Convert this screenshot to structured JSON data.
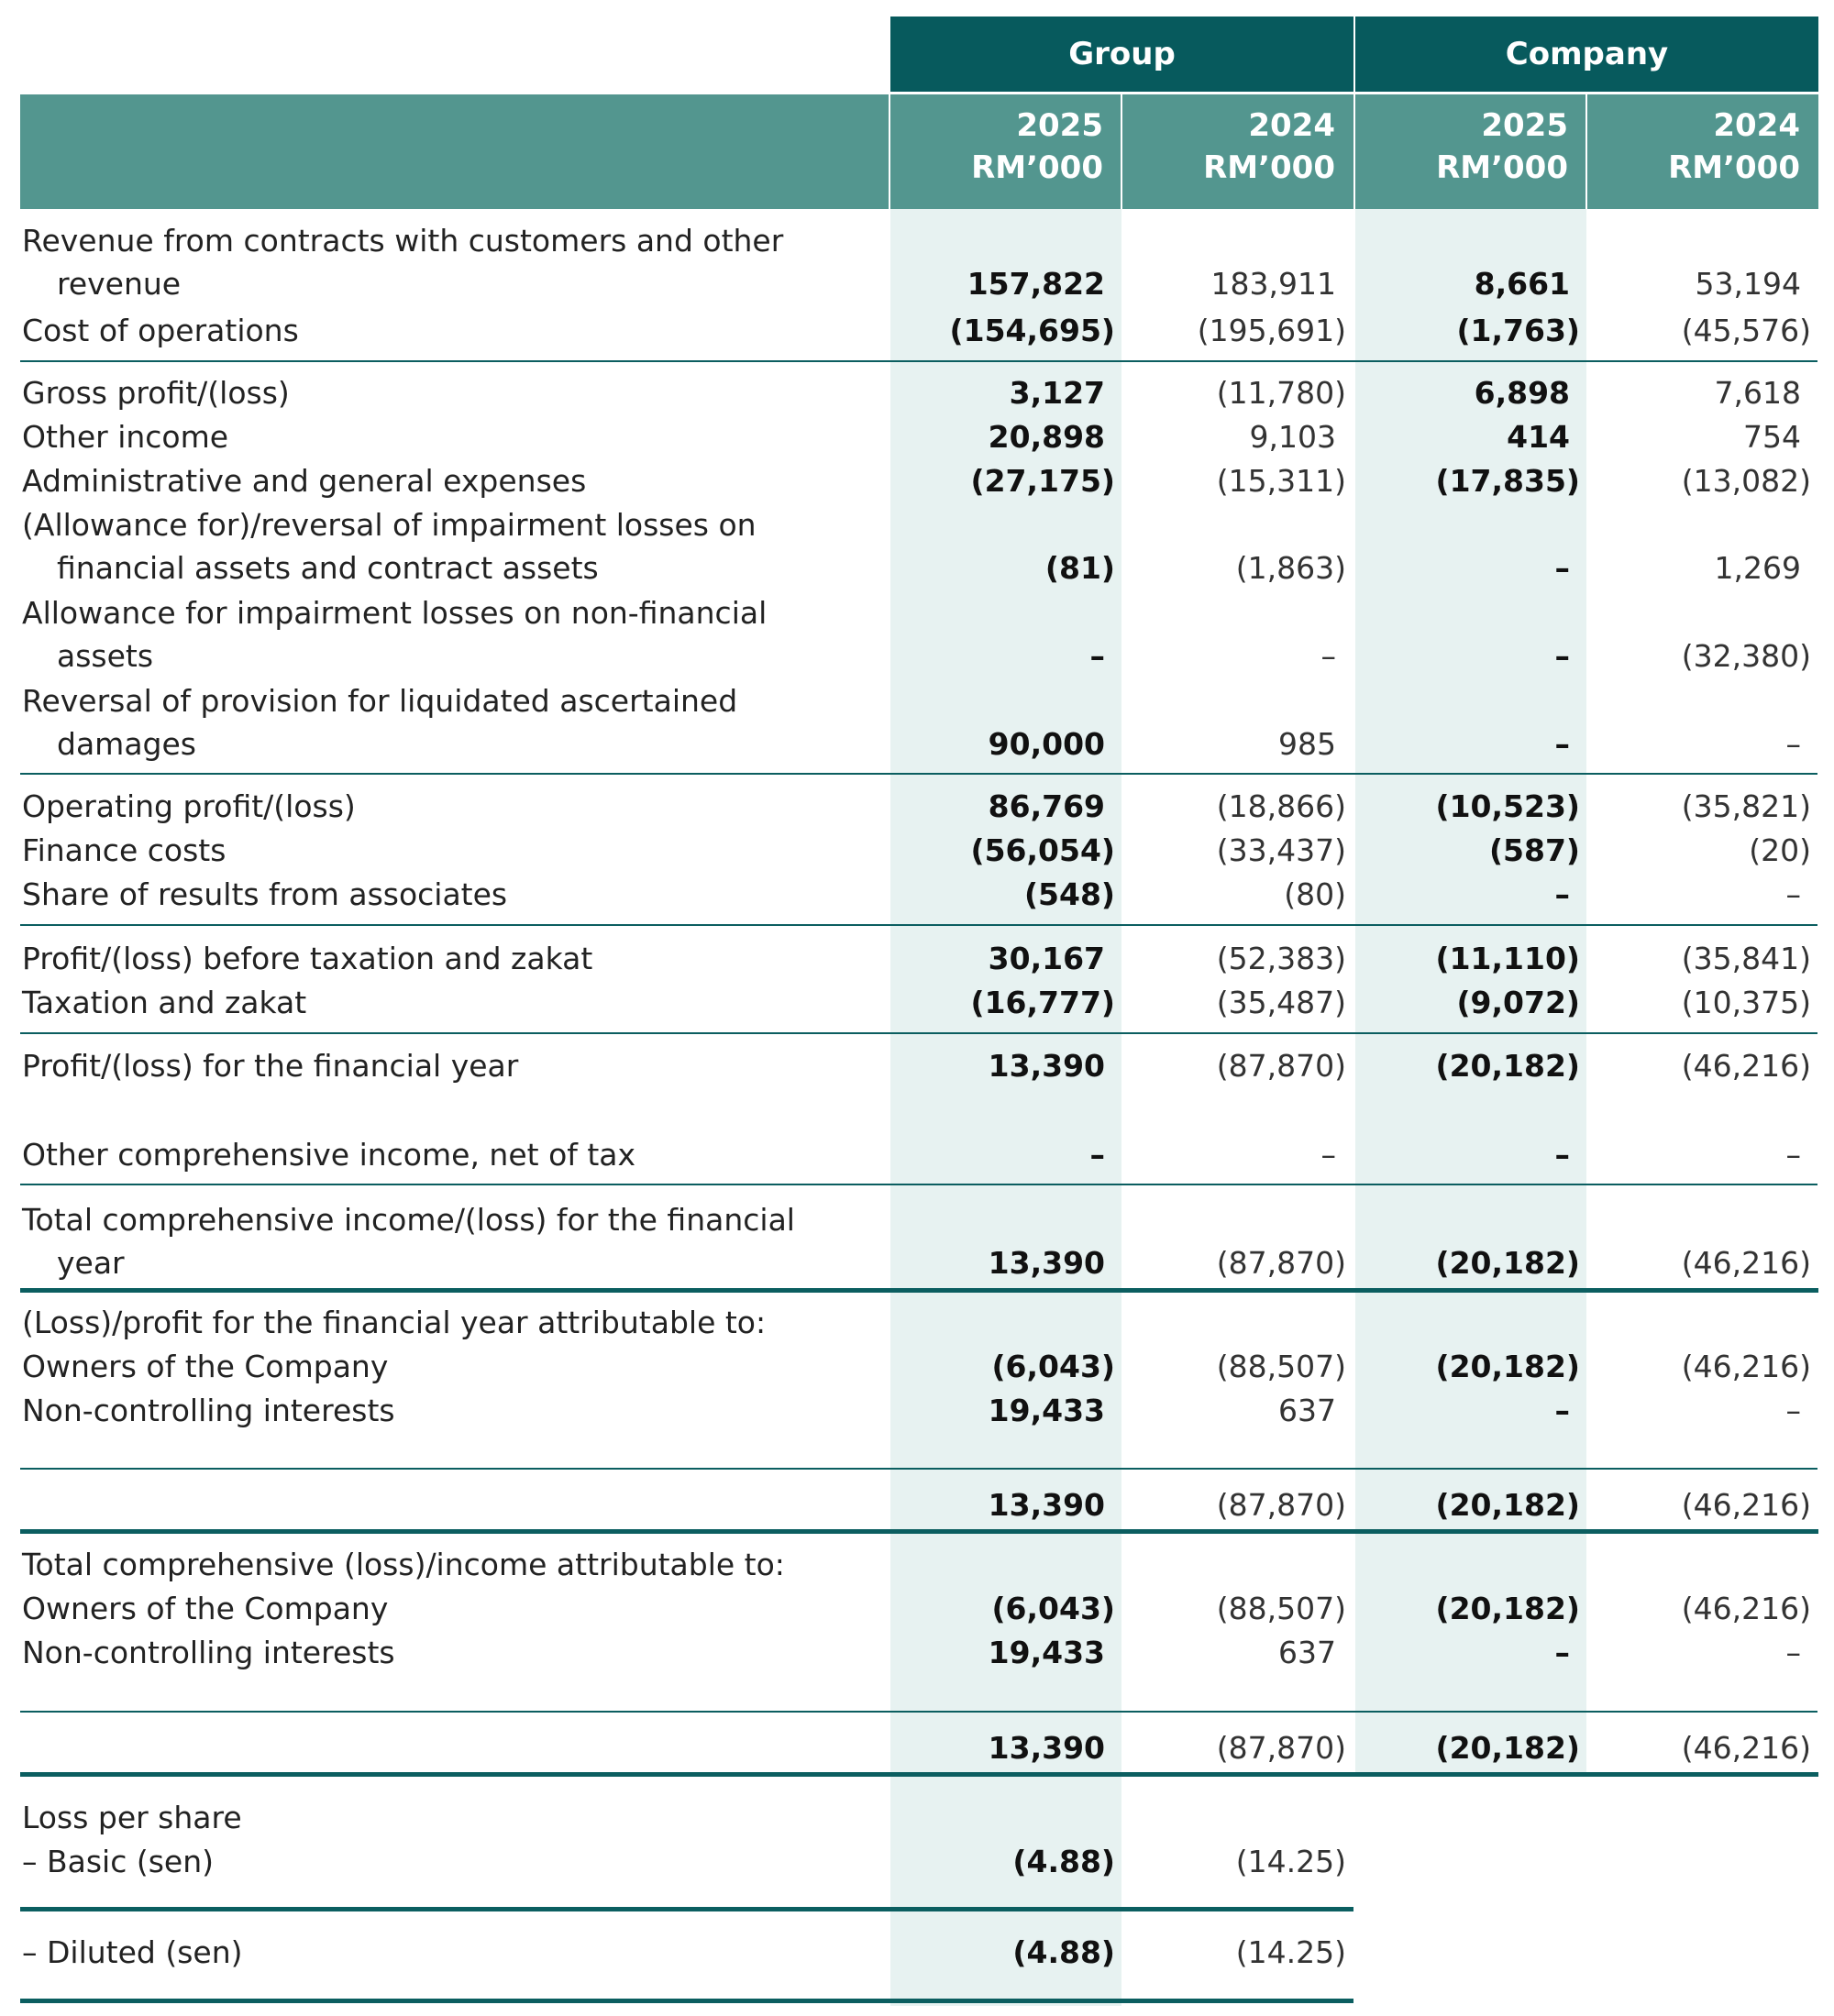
{
  "header": {
    "groups": [
      "Group",
      "Company"
    ],
    "columns": [
      {
        "year": "2025",
        "unit": "RM’000"
      },
      {
        "year": "2024",
        "unit": "RM’000"
      },
      {
        "year": "2025",
        "unit": "RM’000"
      },
      {
        "year": "2024",
        "unit": "RM’000"
      }
    ]
  },
  "rows": [
    {
      "label": [
        "Revenue from contracts with customers and other",
        "revenue"
      ],
      "values": [
        "157,822",
        "183,911",
        "8,661",
        "53,194"
      ]
    },
    {
      "label": [
        "Cost of operations"
      ],
      "values": [
        "(154,695)",
        "(195,691)",
        "(1,763)",
        "(45,576)"
      ]
    },
    {
      "label": [
        "Gross profit/(loss)"
      ],
      "values": [
        "3,127",
        "(11,780)",
        "6,898",
        "7,618"
      ]
    },
    {
      "label": [
        "Other income"
      ],
      "values": [
        "20,898",
        "9,103",
        "414",
        "754"
      ]
    },
    {
      "label": [
        "Administrative and general expenses"
      ],
      "values": [
        "(27,175)",
        "(15,311)",
        "(17,835)",
        "(13,082)"
      ]
    },
    {
      "label": [
        "(Allowance for)/reversal of impairment losses on",
        "financial assets and contract assets"
      ],
      "values": [
        "(81)",
        "(1,863)",
        "–",
        "1,269"
      ]
    },
    {
      "label": [
        "Allowance for impairment losses on non-financial",
        "assets"
      ],
      "values": [
        "–",
        "–",
        "–",
        "(32,380)"
      ]
    },
    {
      "label": [
        "Reversal of provision for liquidated ascertained",
        "damages"
      ],
      "values": [
        "90,000",
        "985",
        "–",
        "–"
      ]
    },
    {
      "label": [
        "Operating profit/(loss)"
      ],
      "values": [
        "86,769",
        "(18,866)",
        "(10,523)",
        "(35,821)"
      ]
    },
    {
      "label": [
        "Finance costs"
      ],
      "values": [
        "(56,054)",
        "(33,437)",
        "(587)",
        "(20)"
      ]
    },
    {
      "label": [
        "Share of results from associates"
      ],
      "values": [
        "(548)",
        "(80)",
        "–",
        "–"
      ]
    },
    {
      "label": [
        "Profit/(loss) before taxation and zakat"
      ],
      "values": [
        "30,167",
        "(52,383)",
        "(11,110)",
        "(35,841)"
      ]
    },
    {
      "label": [
        "Taxation and zakat"
      ],
      "values": [
        "(16,777)",
        "(35,487)",
        "(9,072)",
        "(10,375)"
      ]
    },
    {
      "label": [
        "Profit/(loss) for the financial year"
      ],
      "values": [
        "13,390",
        "(87,870)",
        "(20,182)",
        "(46,216)"
      ]
    },
    {
      "label": [
        "Other comprehensive income, net of tax"
      ],
      "values": [
        "–",
        "–",
        "–",
        "–"
      ]
    },
    {
      "label": [
        "Total comprehensive income/(loss) for the financial",
        "year"
      ],
      "values": [
        "13,390",
        "(87,870)",
        "(20,182)",
        "(46,216)"
      ]
    },
    {
      "label": [
        "(Loss)/profit for the financial year attributable to:"
      ],
      "values": []
    },
    {
      "label": [
        "Owners of the Company"
      ],
      "values": [
        "(6,043)",
        "(88,507)",
        "(20,182)",
        "(46,216)"
      ]
    },
    {
      "label": [
        "Non-controlling interests"
      ],
      "values": [
        "19,433",
        "637",
        "–",
        "–"
      ]
    },
    {
      "label": [],
      "values": [
        "13,390",
        "(87,870)",
        "(20,182)",
        "(46,216)"
      ]
    },
    {
      "label": [
        "Total comprehensive (loss)/income attributable to:"
      ],
      "values": []
    },
    {
      "label": [
        "Owners of the Company"
      ],
      "values": [
        "(6,043)",
        "(88,507)",
        "(20,182)",
        "(46,216)"
      ]
    },
    {
      "label": [
        "Non-controlling interests"
      ],
      "values": [
        "19,433",
        "637",
        "–",
        "–"
      ]
    },
    {
      "label": [],
      "values": [
        "13,390",
        "(87,870)",
        "(20,182)",
        "(46,216)"
      ]
    },
    {
      "label": [
        "Loss per share"
      ],
      "values": []
    },
    {
      "label": [
        "– Basic (sen)"
      ],
      "values": [
        "(4.88)",
        "(14.25)"
      ]
    },
    {
      "label": [
        "– Diluted (sen)"
      ],
      "values": [
        "(4.88)",
        "(14.25)"
      ]
    }
  ]
}
